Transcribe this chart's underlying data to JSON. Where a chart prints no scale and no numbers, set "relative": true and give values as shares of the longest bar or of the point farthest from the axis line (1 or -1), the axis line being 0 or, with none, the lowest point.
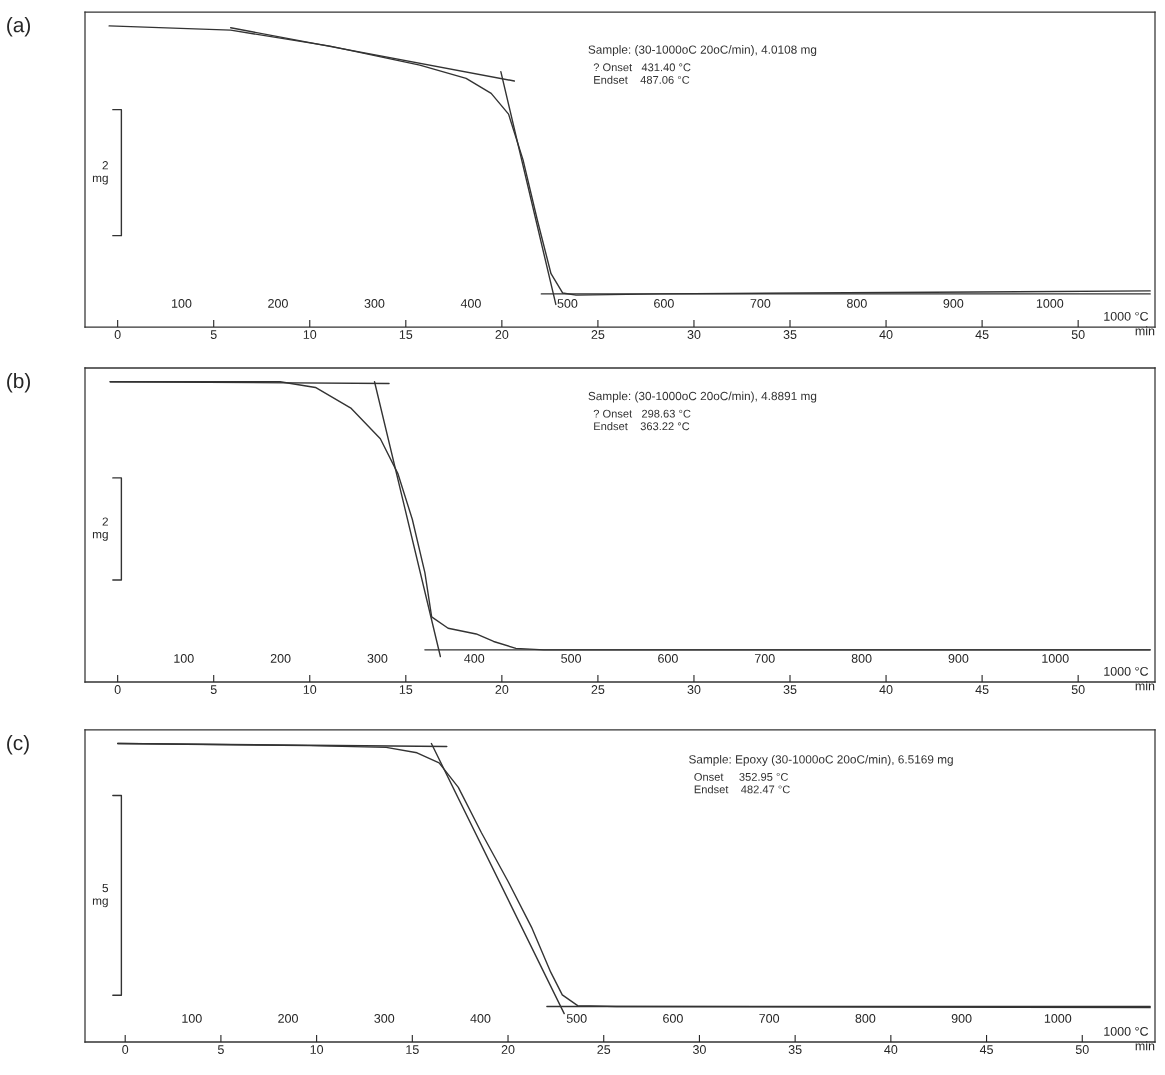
{
  "chart_data": [
    {
      "type": "line",
      "title": "(a)",
      "relative": true,
      "xlabel": "1000 °C",
      "x2label": "min",
      "xlim": [
        0,
        1109
      ],
      "xticks": [
        100,
        200,
        300,
        400,
        500,
        600,
        700,
        800,
        900,
        1000
      ],
      "x2lim": [
        -1.7,
        54
      ],
      "x2ticks": [
        0,
        5,
        10,
        15,
        20,
        25,
        30,
        35,
        40,
        45,
        50
      ],
      "annotations": [
        "Sample: (30-1000oC 20oC/min), 4.0108 mg",
        "? Onset   431.40 °C",
        "Endset    487.06 °C",
        "2\nmg"
      ],
      "series": [
        {
          "color": "#333333",
          "x": [
            25,
            151,
            254,
            347,
            395,
            421,
            439,
            454,
            469,
            483,
            495,
            509,
            596,
            1104
          ],
          "values": [
            1.0,
            0.986,
            0.933,
            0.87,
            0.826,
            0.776,
            0.707,
            0.555,
            0.353,
            0.177,
            0.113,
            0.106,
            0.11,
            0.12
          ]
        },
        {
          "color": "#333333",
          "x": [
            151,
            445
          ],
          "values": [
            0.994,
            0.817
          ]
        },
        {
          "color": "#333333",
          "x": [
            431,
            488
          ],
          "values": [
            0.848,
            0.075
          ]
        },
        {
          "color": "#333333",
          "x": [
            473,
            1104
          ],
          "values": [
            0.11,
            0.11
          ]
        }
      ]
    },
    {
      "type": "line",
      "title": "(b)",
      "relative": true,
      "xlabel": "1000 °C",
      "x2label": "min",
      "xlim": [
        -2,
        1103
      ],
      "xticks": [
        100,
        200,
        300,
        400,
        500,
        600,
        700,
        800,
        900,
        1000
      ],
      "x2lim": [
        -1.7,
        54
      ],
      "x2ticks": [
        0,
        5,
        10,
        15,
        20,
        25,
        30,
        35,
        40,
        45,
        50
      ],
      "annotations": [
        "Sample: (30-1000oC 20oC/min), 4.8891 mg",
        "? Onset   298.63 °C",
        "Endset    363.22 °C",
        "2\nmg"
      ],
      "series": [
        {
          "color": "#333333",
          "x": [
            24,
            199.5,
            236,
            273,
            303,
            321,
            336,
            349,
            356,
            373,
            402,
            420,
            443,
            472,
            1098
          ],
          "values": [
            1.0,
            1.0,
            0.981,
            0.911,
            0.81,
            0.695,
            0.542,
            0.364,
            0.217,
            0.179,
            0.16,
            0.135,
            0.112,
            0.107,
            0.107
          ]
        },
        {
          "color": "#333333",
          "x": [
            24,
            312
          ],
          "values": [
            1.0,
            0.994
          ]
        },
        {
          "color": "#333333",
          "x": [
            297,
            365
          ],
          "values": [
            1.0,
            0.085
          ]
        },
        {
          "color": "#333333",
          "x": [
            349,
            1098
          ],
          "values": [
            0.107,
            0.107
          ]
        }
      ]
    },
    {
      "type": "line",
      "title": "(c)",
      "relative": true,
      "xlabel": "1000 °C",
      "x2label": "min",
      "xlim": [
        -11,
        1101
      ],
      "xticks": [
        100,
        200,
        300,
        400,
        500,
        600,
        700,
        800,
        900,
        1000
      ],
      "x2lim": [
        -2.1,
        53.8
      ],
      "x2ticks": [
        0,
        5,
        10,
        15,
        20,
        25,
        30,
        35,
        40,
        45,
        50
      ],
      "annotations": [
        "Sample: Epoxy (30-1000oC 20oC/min), 6.5169 mg",
        "Onset     352.95 °C",
        "Endset    482.47 °C",
        "5\nmg"
      ],
      "series": [
        {
          "color": "#333333",
          "x": [
            23,
            222,
            302,
            334,
            357,
            377,
            401,
            429,
            453,
            473,
            485,
            501,
            541,
            1096
          ],
          "values": [
            1.0,
            0.993,
            0.987,
            0.969,
            0.935,
            0.853,
            0.701,
            0.536,
            0.385,
            0.234,
            0.158,
            0.122,
            0.119,
            0.115
          ]
        },
        {
          "color": "#333333",
          "x": [
            23,
            365
          ],
          "values": [
            1.0,
            0.99
          ]
        },
        {
          "color": "#333333",
          "x": [
            349,
            487
          ],
          "values": [
            1.0,
            0.095
          ]
        },
        {
          "color": "#333333",
          "x": [
            469,
            1096
          ],
          "values": [
            0.119,
            0.119
          ]
        }
      ]
    }
  ]
}
